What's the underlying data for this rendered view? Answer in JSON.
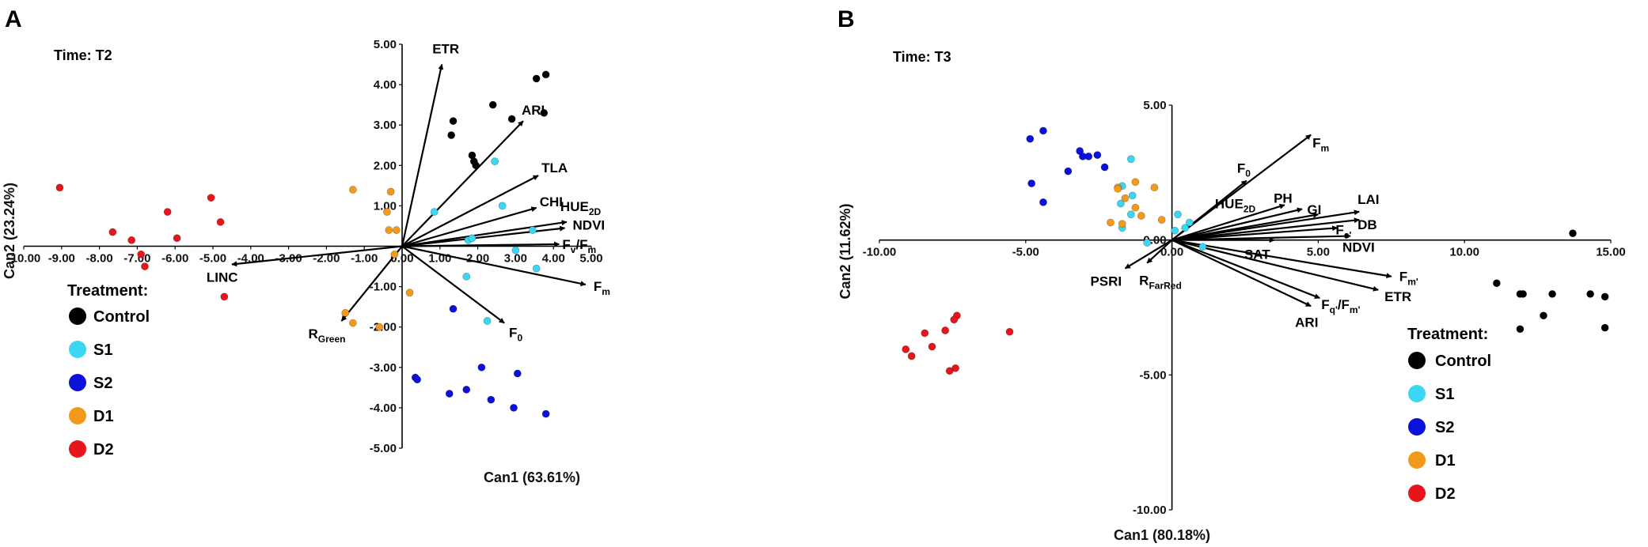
{
  "chart_data": [
    {
      "type": "scatter",
      "panel_label": "A",
      "title": "Time: T2",
      "xlabel": "Can1 (63.61%)",
      "ylabel": "Can2 (23.24%)",
      "xlim": [
        -10,
        5
      ],
      "ylim": [
        -5,
        5
      ],
      "xticks": [
        -10,
        -9,
        -8,
        -7,
        -6,
        -5,
        -4,
        -3,
        -2,
        -1,
        0,
        1,
        2,
        3,
        4,
        5
      ],
      "xtick_labels": [
        "-10.00",
        "-9.00",
        "-8.00",
        "-7.00",
        "-6.00",
        "-5.00",
        "-4.00",
        "-3.00",
        "-2.00",
        "-1.00",
        "0.00",
        "1.00",
        "2.00",
        "3.00",
        "4.00",
        "5.00"
      ],
      "yticks": [
        5,
        4,
        3,
        2,
        1,
        -1,
        -2,
        -3,
        -4,
        -5
      ],
      "ytick_labels": [
        "5.00",
        "4.00",
        "3.00",
        "2.00",
        "1.00",
        "-1.00",
        "-2.00",
        "-3.00",
        "-4.00",
        "-5.00"
      ],
      "legend": {
        "title": "Treatment:",
        "items": [
          {
            "name": "Control",
            "color": "#000000"
          },
          {
            "name": "S1",
            "color": "#3ad6f2"
          },
          {
            "name": "S2",
            "color": "#0a12d9"
          },
          {
            "name": "D1",
            "color": "#f39a1b"
          },
          {
            "name": "D2",
            "color": "#e8141b"
          }
        ]
      },
      "series": [
        {
          "name": "Control",
          "color": "#000000",
          "points": [
            [
              1.3,
              2.75
            ],
            [
              1.35,
              3.1
            ],
            [
              1.85,
              2.25
            ],
            [
              1.9,
              2.1
            ],
            [
              1.95,
              2.0
            ],
            [
              2.4,
              3.5
            ],
            [
              2.9,
              3.15
            ],
            [
              3.55,
              4.15
            ],
            [
              3.8,
              4.25
            ],
            [
              3.75,
              3.3
            ]
          ]
        },
        {
          "name": "S1",
          "color": "#3ad6f2",
          "points": [
            [
              0.85,
              0.85
            ],
            [
              1.75,
              0.15
            ],
            [
              1.85,
              0.2
            ],
            [
              2.45,
              2.1
            ],
            [
              2.65,
              1.0
            ],
            [
              3.0,
              -0.1
            ],
            [
              3.45,
              0.4
            ],
            [
              3.55,
              -0.55
            ],
            [
              1.7,
              -0.75
            ],
            [
              2.25,
              -1.85
            ]
          ]
        },
        {
          "name": "S2",
          "color": "#0a12d9",
          "points": [
            [
              1.35,
              -1.55
            ],
            [
              0.35,
              -3.25
            ],
            [
              0.4,
              -3.3
            ],
            [
              1.25,
              -3.65
            ],
            [
              1.7,
              -3.55
            ],
            [
              2.1,
              -3.0
            ],
            [
              2.35,
              -3.8
            ],
            [
              2.95,
              -4.0
            ],
            [
              3.05,
              -3.15
            ],
            [
              3.8,
              -4.15
            ]
          ]
        },
        {
          "name": "D1",
          "color": "#f39a1b",
          "points": [
            [
              -1.3,
              1.4
            ],
            [
              -0.3,
              1.35
            ],
            [
              -0.4,
              0.85
            ],
            [
              -0.35,
              0.4
            ],
            [
              -0.15,
              0.4
            ],
            [
              -0.2,
              -0.2
            ],
            [
              0.2,
              -1.15
            ],
            [
              -1.5,
              -1.65
            ],
            [
              -1.3,
              -1.9
            ],
            [
              -0.6,
              -2.0
            ]
          ]
        },
        {
          "name": "D2",
          "color": "#e8141b",
          "points": [
            [
              -9.05,
              1.45
            ],
            [
              -7.65,
              0.35
            ],
            [
              -7.15,
              0.15
            ],
            [
              -6.9,
              -0.2
            ],
            [
              -6.8,
              -0.5
            ],
            [
              -6.2,
              0.85
            ],
            [
              -5.95,
              0.2
            ],
            [
              -5.05,
              1.2
            ],
            [
              -4.8,
              0.6
            ],
            [
              -4.7,
              -1.25
            ]
          ]
        }
      ],
      "vectors": [
        {
          "label": "ETR",
          "x": 1.05,
          "y": 4.5
        },
        {
          "label": "ARI",
          "x": 3.2,
          "y": 3.1
        },
        {
          "label": "TLA",
          "x": 3.6,
          "y": 1.75
        },
        {
          "label": "CHI",
          "x": 3.55,
          "y": 0.95
        },
        {
          "label": "HUE2D",
          "label_main": "HUE",
          "label_sub": "2D",
          "x": 4.35,
          "y": 0.6
        },
        {
          "label": "NDVI",
          "x": 4.3,
          "y": 0.45
        },
        {
          "label": "Fv/Fm",
          "label_main": "F",
          "label_sub": "v",
          "label_rest": "/F",
          "label_sub2": "m",
          "x": 4.15,
          "y": 0.05
        },
        {
          "label": "Fm",
          "label_main": "F",
          "label_sub": "m",
          "x": 4.85,
          "y": -0.95
        },
        {
          "label": "F0",
          "label_main": "F",
          "label_sub": "0",
          "x": 2.7,
          "y": -1.9
        },
        {
          "label": "LINC",
          "x": -4.5,
          "y": -0.45
        },
        {
          "label": "RGreen",
          "label_main": "R",
          "label_sub": "Green",
          "x": -1.6,
          "y": -1.85
        }
      ]
    },
    {
      "type": "scatter",
      "panel_label": "B",
      "title": "Time: T3",
      "xlabel": "Can1 (80.18%)",
      "ylabel": "Can2 (11.62%)",
      "xlim": [
        -10,
        15
      ],
      "ylim": [
        -10,
        5
      ],
      "xticks": [
        -10,
        -5,
        0,
        5,
        10,
        15
      ],
      "xtick_labels": [
        "-10.00",
        "-5.00",
        "0.00",
        "5.00",
        "10.00",
        "15.00"
      ],
      "yticks": [
        5,
        0,
        -5,
        -10
      ],
      "ytick_labels": [
        "5.00",
        "0.00",
        "-5.00",
        "-10.00"
      ],
      "legend": {
        "title": "Treatment:",
        "items": [
          {
            "name": "Control",
            "color": "#000000"
          },
          {
            "name": "S1",
            "color": "#3ad6f2"
          },
          {
            "name": "S2",
            "color": "#0a12d9"
          },
          {
            "name": "D1",
            "color": "#f39a1b"
          },
          {
            "name": "D2",
            "color": "#e8141b"
          }
        ]
      },
      "series": [
        {
          "name": "Control",
          "color": "#000000",
          "points": [
            [
              12.7,
              -2.8
            ],
            [
              11.9,
              -2.0
            ],
            [
              11.9,
              -3.3
            ],
            [
              11.1,
              -1.6
            ],
            [
              12.0,
              -2.0
            ],
            [
              13.0,
              -2.0
            ],
            [
              14.3,
              -2.0
            ],
            [
              14.8,
              -2.1
            ],
            [
              14.8,
              -3.25
            ],
            [
              13.7,
              0.25
            ]
          ]
        },
        {
          "name": "S1",
          "color": "#3ad6f2",
          "points": [
            [
              -1.4,
              3.0
            ],
            [
              -1.7,
              2.0
            ],
            [
              -1.35,
              1.65
            ],
            [
              -1.75,
              1.35
            ],
            [
              -1.4,
              0.95
            ],
            [
              -1.7,
              0.45
            ],
            [
              -0.85,
              -0.1
            ],
            [
              0.1,
              0.35
            ],
            [
              0.2,
              0.95
            ],
            [
              0.45,
              0.45
            ],
            [
              0.6,
              0.65
            ],
            [
              1.05,
              -0.25
            ]
          ]
        },
        {
          "name": "S2",
          "color": "#0a12d9",
          "points": [
            [
              -4.85,
              3.75
            ],
            [
              -4.4,
              4.05
            ],
            [
              -3.15,
              3.3
            ],
            [
              -3.05,
              3.1
            ],
            [
              -2.85,
              3.1
            ],
            [
              -2.55,
              3.15
            ],
            [
              -2.3,
              2.7
            ],
            [
              -3.55,
              2.55
            ],
            [
              -4.8,
              2.1
            ],
            [
              -4.4,
              1.4
            ]
          ]
        },
        {
          "name": "D1",
          "color": "#f39a1b",
          "points": [
            [
              -1.85,
              1.95
            ],
            [
              -1.6,
              1.55
            ],
            [
              -1.25,
              2.15
            ],
            [
              -0.6,
              1.95
            ],
            [
              -1.25,
              1.2
            ],
            [
              -1.05,
              0.9
            ],
            [
              -2.1,
              0.65
            ],
            [
              -1.85,
              1.9
            ],
            [
              -1.7,
              0.6
            ],
            [
              -0.35,
              0.75
            ]
          ]
        },
        {
          "name": "D2",
          "color": "#e8141b",
          "points": [
            [
              -7.35,
              -2.8
            ],
            [
              -7.45,
              -2.95
            ],
            [
              -7.75,
              -3.35
            ],
            [
              -8.45,
              -3.45
            ],
            [
              -8.2,
              -3.95
            ],
            [
              -9.1,
              -4.05
            ],
            [
              -8.9,
              -4.3
            ],
            [
              -7.4,
              -4.75
            ],
            [
              -7.6,
              -4.85
            ],
            [
              -5.55,
              -3.4
            ]
          ]
        }
      ],
      "vectors": [
        {
          "label": "Fm",
          "label_main": "F",
          "label_sub": "m",
          "x": 4.75,
          "y": 3.9
        },
        {
          "label": "F0",
          "label_main": "F",
          "label_sub": "0",
          "x": 2.55,
          "y": 2.2
        },
        {
          "label": "HUE2D",
          "label_main": "HUE",
          "label_sub": "2D",
          "x": 3.85,
          "y": 1.3
        },
        {
          "label": "PH",
          "x": 4.45,
          "y": 1.15
        },
        {
          "label": "GI",
          "x": 5.0,
          "y": 0.95
        },
        {
          "label": "LAI",
          "x": 6.4,
          "y": 1.05
        },
        {
          "label": "DB",
          "x": 6.4,
          "y": 0.75
        },
        {
          "label": "Fs'",
          "label_main": "F",
          "label_sub": "s'",
          "x": 5.65,
          "y": 0.45
        },
        {
          "label": "SAT",
          "x": 3.5,
          "y": 0.0
        },
        {
          "label": "NDVI",
          "x": 6.1,
          "y": 0.15
        },
        {
          "label": "Fm'",
          "label_main": "F",
          "label_sub": "m'",
          "x": 7.5,
          "y": -1.35
        },
        {
          "label": "ETR",
          "x": 7.05,
          "y": -1.85
        },
        {
          "label": "Fq'/Fm'",
          "label_main": "F",
          "label_sub": "q'",
          "label_rest": "/F",
          "label_sub2": "m'",
          "x": 5.05,
          "y": -2.15
        },
        {
          "label": "ARI",
          "x": 4.75,
          "y": -2.45
        },
        {
          "label": "PSRI",
          "x": -1.6,
          "y": -1.05
        },
        {
          "label": "RFarRed",
          "label_main": "R",
          "label_sub": "FarRed",
          "x": -0.85,
          "y": -0.85
        }
      ]
    }
  ]
}
